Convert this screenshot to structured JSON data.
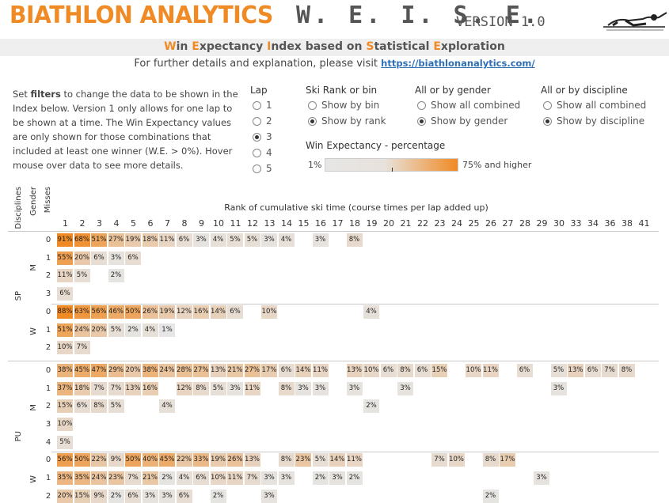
{
  "header": {
    "brand": "BIATHLON ANALYTICS",
    "product": "W. E. I. S. E.",
    "version": "VERSION 1.0",
    "logo_icon": "biathlete-prone-icon",
    "subtitle_parts": [
      {
        "t": "W",
        "hl": true
      },
      {
        "t": "in ",
        "hl": false
      },
      {
        "t": "E",
        "hl": true
      },
      {
        "t": "xpectancy ",
        "hl": false
      },
      {
        "t": "I",
        "hl": true
      },
      {
        "t": "ndex based on ",
        "hl": false
      },
      {
        "t": "S",
        "hl": true
      },
      {
        "t": "tatistical ",
        "hl": false
      },
      {
        "t": "E",
        "hl": true
      },
      {
        "t": "xploration",
        "hl": false
      }
    ],
    "visit_text": "For further details and explanation, please visit",
    "visit_link": "https://biathlonanalytics.com/"
  },
  "instructions": {
    "pre": "Set ",
    "bold": "filters",
    "post": " to change the data to be shown in the Index below. Version 1 only allows for one lap to be shown at a time. The Win Expectancy values are only shown for those combinations that included at least one winner (W.E. > 0%). Hover mouse over data to see more details."
  },
  "filters": {
    "lap": {
      "title": "Lap",
      "options": [
        "1",
        "2",
        "3",
        "4",
        "5"
      ],
      "selected": 2
    },
    "ski_rank": {
      "title": "Ski Rank or bin",
      "options": [
        "Show by bin",
        "Show by rank"
      ],
      "selected": 1
    },
    "gender": {
      "title": "All or by gender",
      "options": [
        "Show all combined",
        "Show by gender"
      ],
      "selected": 1
    },
    "discipline": {
      "title": "All or by discipline",
      "options": [
        "Show all combined",
        "Show by discipline"
      ],
      "selected": 1
    }
  },
  "legend": {
    "title": "Win Expectancy - percentage",
    "min_label": "1%",
    "max_label": "75% and higher",
    "low_color": "#e6e6e6",
    "high_color": "#f08a24"
  },
  "grid": {
    "col_axis_title": "Rank of cumulative ski time (course times per lap added up)",
    "row_axis_titles": [
      "Disciplines",
      "Gender",
      "Misses"
    ],
    "columns": [
      "1",
      "2",
      "3",
      "4",
      "5",
      "6",
      "7",
      "8",
      "9",
      "10",
      "11",
      "12",
      "13",
      "14",
      "15",
      "16",
      "17",
      "18",
      "19",
      "20",
      "21",
      "22",
      "23",
      "24",
      "25",
      "26",
      "27",
      "28",
      "29",
      "30",
      "33",
      "34",
      "36",
      "38",
      "41"
    ],
    "disciplines": [
      {
        "name": "SP",
        "genders": [
          {
            "name": "M",
            "rows": [
              {
                "miss": "0",
                "vals": {
                  "1": 91,
                  "2": 68,
                  "3": 51,
                  "4": 27,
                  "5": 19,
                  "6": 18,
                  "7": 11,
                  "8": 6,
                  "9": 3,
                  "10": 4,
                  "11": 5,
                  "12": 5,
                  "13": 3,
                  "14": 4,
                  "16": 3,
                  "18": 8
                }
              },
              {
                "miss": "1",
                "vals": {
                  "1": 55,
                  "2": 20,
                  "3": 6,
                  "4": 3,
                  "5": 6
                }
              },
              {
                "miss": "2",
                "vals": {
                  "1": 11,
                  "2": 5,
                  "4": 2
                }
              },
              {
                "miss": "3",
                "vals": {
                  "1": 6
                }
              }
            ]
          },
          {
            "name": "W",
            "rows": [
              {
                "miss": "0",
                "vals": {
                  "1": 88,
                  "2": 63,
                  "3": 56,
                  "4": 46,
                  "5": 50,
                  "6": 26,
                  "7": 19,
                  "8": 12,
                  "9": 16,
                  "10": 14,
                  "11": 6,
                  "13": 10,
                  "19": 4
                }
              },
              {
                "miss": "1",
                "vals": {
                  "1": 51,
                  "2": 24,
                  "3": 20,
                  "4": 5,
                  "5": 2,
                  "6": 4,
                  "7": 1
                }
              },
              {
                "miss": "2",
                "vals": {
                  "1": 10,
                  "2": 7
                }
              }
            ]
          }
        ]
      },
      {
        "name": "PU",
        "genders": [
          {
            "name": "M",
            "rows": [
              {
                "miss": "0",
                "vals": {
                  "1": 38,
                  "2": 45,
                  "3": 47,
                  "4": 29,
                  "5": 20,
                  "6": 38,
                  "7": 24,
                  "8": 28,
                  "9": 27,
                  "10": 13,
                  "11": 21,
                  "12": 27,
                  "13": 17,
                  "14": 6,
                  "15": 14,
                  "16": 11,
                  "18": 13,
                  "19": 10,
                  "20": 6,
                  "21": 8,
                  "22": 6,
                  "23": 15,
                  "25": 10,
                  "26": 11,
                  "28": 6,
                  "30": 5,
                  "33": 13,
                  "34": 6,
                  "36": 7,
                  "38": 8
                }
              },
              {
                "miss": "1",
                "vals": {
                  "1": 37,
                  "2": 18,
                  "3": 7,
                  "4": 7,
                  "5": 13,
                  "6": 16,
                  "8": 12,
                  "9": 8,
                  "10": 5,
                  "11": 3,
                  "12": 11,
                  "14": 8,
                  "15": 3,
                  "16": 3,
                  "18": 3,
                  "21": 3,
                  "30": 3
                }
              },
              {
                "miss": "2",
                "vals": {
                  "1": 15,
                  "2": 6,
                  "3": 8,
                  "4": 5,
                  "7": 4,
                  "19": 2
                }
              },
              {
                "miss": "3",
                "vals": {
                  "1": 10
                }
              },
              {
                "miss": "4",
                "vals": {
                  "1": 5
                }
              }
            ]
          },
          {
            "name": "W",
            "rows": [
              {
                "miss": "0",
                "vals": {
                  "1": 56,
                  "2": 50,
                  "3": 22,
                  "4": 9,
                  "5": 50,
                  "6": 40,
                  "7": 45,
                  "8": 22,
                  "9": 33,
                  "10": 19,
                  "11": 26,
                  "12": 13,
                  "14": 8,
                  "15": 23,
                  "16": 5,
                  "17": 14,
                  "18": 11,
                  "23": 7,
                  "24": 10,
                  "26": 8,
                  "27": 17
                }
              },
              {
                "miss": "1",
                "vals": {
                  "1": 35,
                  "2": 35,
                  "3": 24,
                  "4": 23,
                  "5": 7,
                  "6": 21,
                  "7": 2,
                  "8": 4,
                  "9": 6,
                  "10": 10,
                  "11": 11,
                  "12": 7,
                  "13": 3,
                  "14": 3,
                  "16": 2,
                  "17": 3,
                  "18": 2,
                  "29": 3
                }
              },
              {
                "miss": "2",
                "vals": {
                  "1": 20,
                  "2": 15,
                  "3": 9,
                  "4": 2,
                  "5": 6,
                  "6": 3,
                  "7": 3,
                  "8": 6,
                  "10": 2,
                  "13": 3,
                  "26": 2
                }
              }
            ]
          }
        ]
      }
    ]
  }
}
